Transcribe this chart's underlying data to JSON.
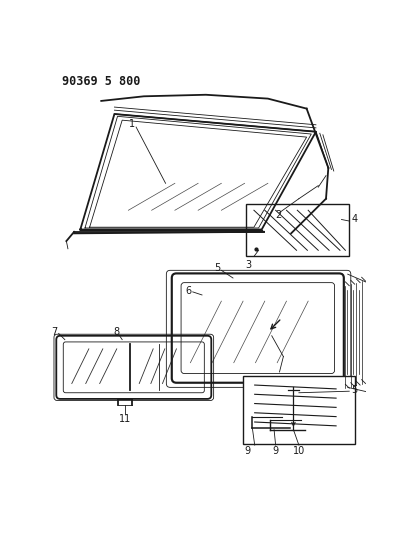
{
  "title": "90369 5 800",
  "bg_color": "#ffffff",
  "line_color": "#1a1a1a",
  "fig_width": 4.07,
  "fig_height": 5.33,
  "dpi": 100
}
